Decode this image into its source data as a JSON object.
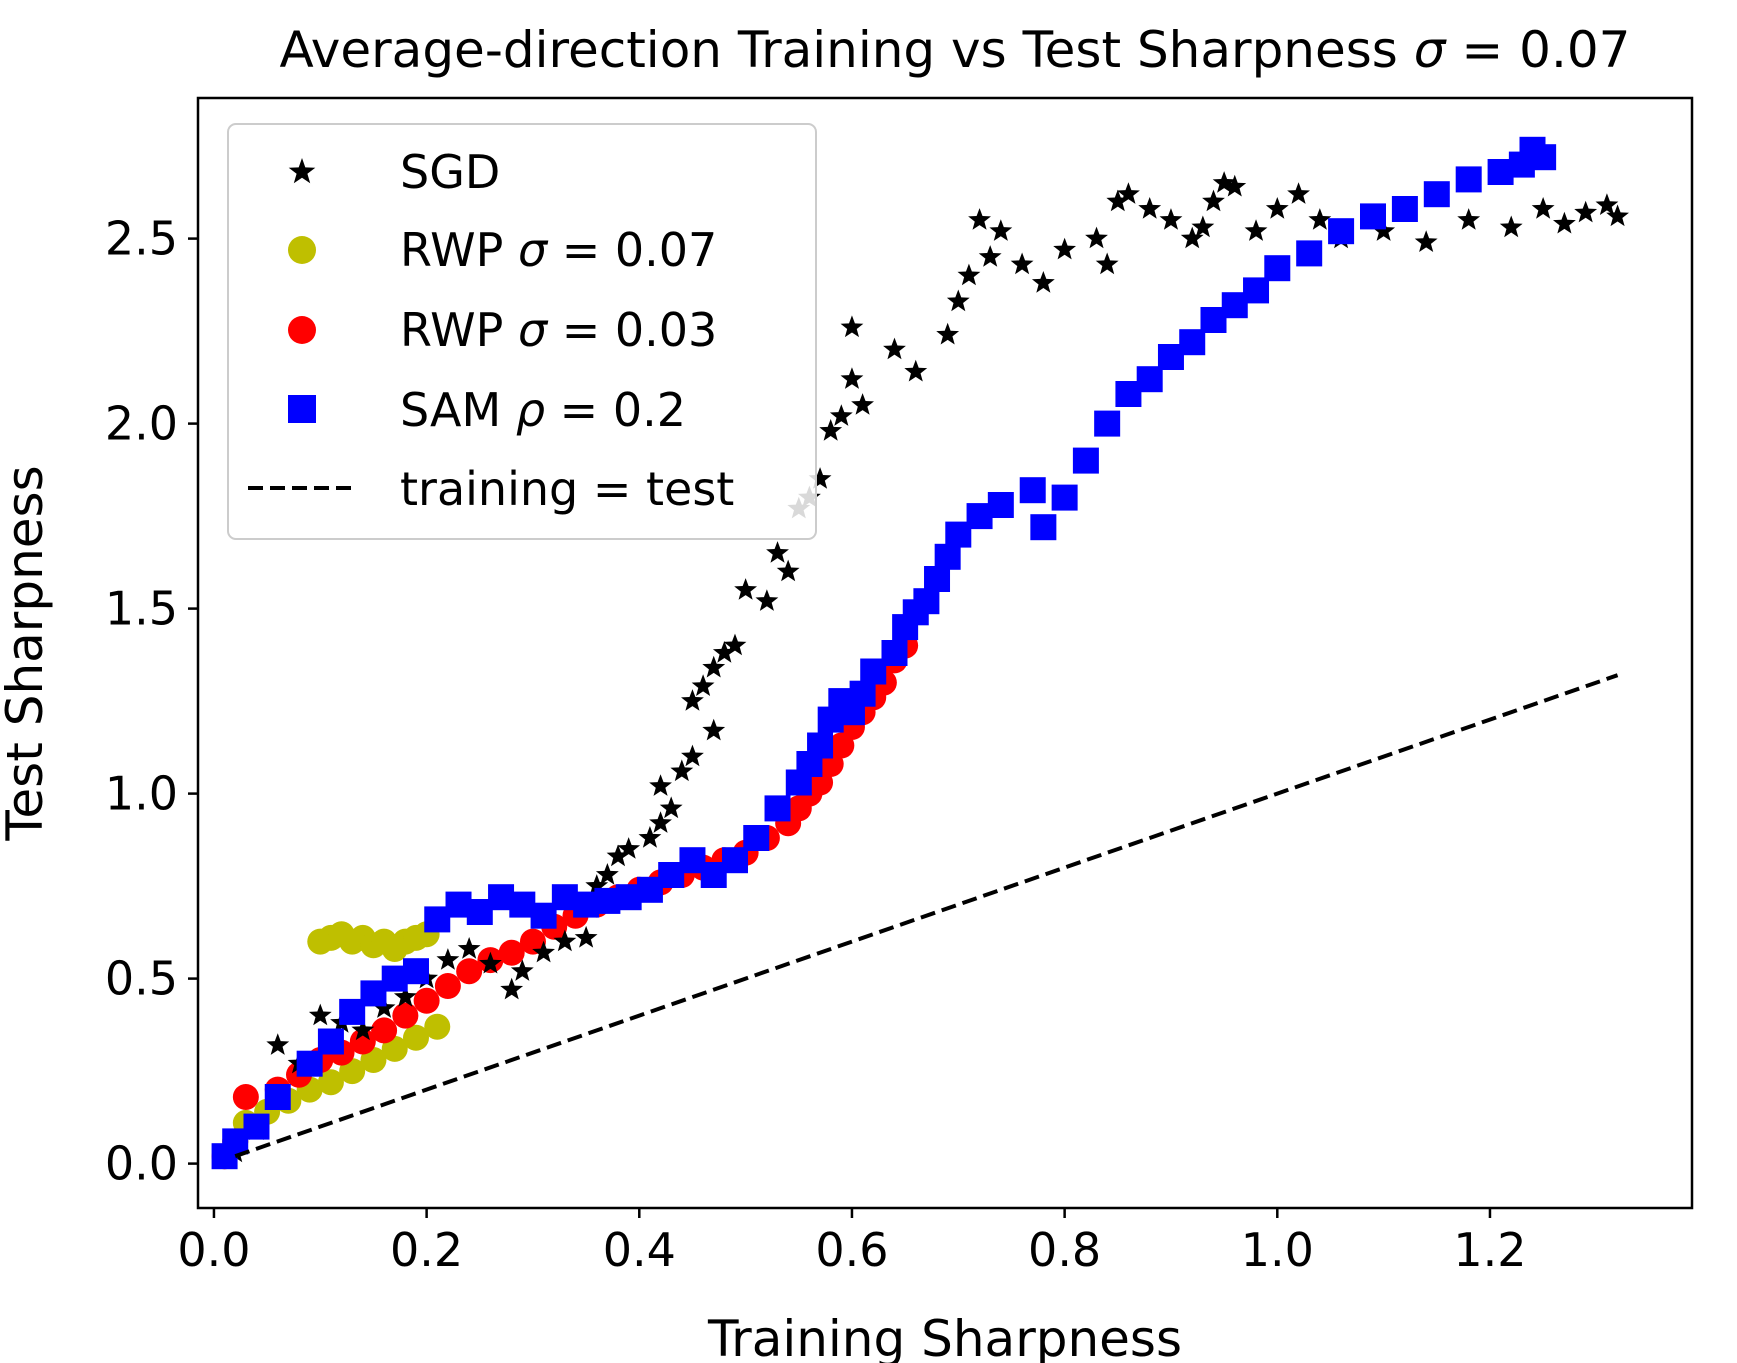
{
  "chart_data": {
    "type": "scatter",
    "title_main": "Average-direction Training vs Test Sharpness ",
    "title_sigma": "σ",
    "title_value": " = 0.07",
    "xlabel": "Training Sharpness",
    "ylabel": "Test Sharpness",
    "xlim": [
      -0.015,
      1.39
    ],
    "ylim": [
      -0.12,
      2.88
    ],
    "xticks": [
      0.0,
      0.2,
      0.4,
      0.6,
      0.8,
      1.0,
      1.2
    ],
    "xtick_labels": [
      "0.0",
      "0.2",
      "0.4",
      "0.6",
      "0.8",
      "1.0",
      "1.2"
    ],
    "yticks": [
      0.0,
      0.5,
      1.0,
      1.5,
      2.0,
      2.5
    ],
    "ytick_labels": [
      "0.0",
      "0.5",
      "1.0",
      "1.5",
      "2.0",
      "2.5"
    ],
    "legend_position": "upper-left",
    "series": [
      {
        "name": "SGD",
        "legend_label": "SGD",
        "marker": "star",
        "color": "#000000",
        "points": [
          [
            0.02,
            0.03
          ],
          [
            0.04,
            0.09
          ],
          [
            0.06,
            0.32
          ],
          [
            0.08,
            0.27
          ],
          [
            0.1,
            0.4
          ],
          [
            0.12,
            0.38
          ],
          [
            0.14,
            0.36
          ],
          [
            0.16,
            0.42
          ],
          [
            0.18,
            0.45
          ],
          [
            0.2,
            0.5
          ],
          [
            0.22,
            0.55
          ],
          [
            0.24,
            0.58
          ],
          [
            0.26,
            0.54
          ],
          [
            0.28,
            0.47
          ],
          [
            0.29,
            0.52
          ],
          [
            0.31,
            0.57
          ],
          [
            0.33,
            0.6
          ],
          [
            0.35,
            0.61
          ],
          [
            0.36,
            0.75
          ],
          [
            0.37,
            0.78
          ],
          [
            0.38,
            0.83
          ],
          [
            0.39,
            0.85
          ],
          [
            0.41,
            0.88
          ],
          [
            0.42,
            0.92
          ],
          [
            0.43,
            0.96
          ],
          [
            0.42,
            1.02
          ],
          [
            0.44,
            1.06
          ],
          [
            0.45,
            1.1
          ],
          [
            0.45,
            1.25
          ],
          [
            0.46,
            1.29
          ],
          [
            0.47,
            1.17
          ],
          [
            0.47,
            1.34
          ],
          [
            0.48,
            1.38
          ],
          [
            0.49,
            1.4
          ],
          [
            0.5,
            1.55
          ],
          [
            0.52,
            1.52
          ],
          [
            0.53,
            1.65
          ],
          [
            0.54,
            1.6
          ],
          [
            0.55,
            1.77
          ],
          [
            0.56,
            1.8
          ],
          [
            0.57,
            1.85
          ],
          [
            0.58,
            1.98
          ],
          [
            0.59,
            2.02
          ],
          [
            0.6,
            2.12
          ],
          [
            0.61,
            2.05
          ],
          [
            0.6,
            2.26
          ],
          [
            0.64,
            2.2
          ],
          [
            0.66,
            2.14
          ],
          [
            0.69,
            2.24
          ],
          [
            0.7,
            2.33
          ],
          [
            0.71,
            2.4
          ],
          [
            0.72,
            2.55
          ],
          [
            0.73,
            2.45
          ],
          [
            0.74,
            2.52
          ],
          [
            0.76,
            2.43
          ],
          [
            0.78,
            2.38
          ],
          [
            0.8,
            2.47
          ],
          [
            0.83,
            2.5
          ],
          [
            0.84,
            2.43
          ],
          [
            0.85,
            2.6
          ],
          [
            0.86,
            2.62
          ],
          [
            0.88,
            2.58
          ],
          [
            0.9,
            2.55
          ],
          [
            0.92,
            2.5
          ],
          [
            0.93,
            2.53
          ],
          [
            0.94,
            2.6
          ],
          [
            0.95,
            2.65
          ],
          [
            0.96,
            2.64
          ],
          [
            0.98,
            2.52
          ],
          [
            1.0,
            2.58
          ],
          [
            1.02,
            2.62
          ],
          [
            1.04,
            2.55
          ],
          [
            1.06,
            2.5
          ],
          [
            1.1,
            2.52
          ],
          [
            1.14,
            2.49
          ],
          [
            1.18,
            2.55
          ],
          [
            1.22,
            2.53
          ],
          [
            1.25,
            2.58
          ],
          [
            1.27,
            2.54
          ],
          [
            1.29,
            2.57
          ],
          [
            1.31,
            2.59
          ],
          [
            1.32,
            2.56
          ]
        ]
      },
      {
        "name": "RWP sigma 0.07",
        "legend_prefix": "RWP ",
        "legend_symbol": "σ",
        "legend_value": " = 0.07",
        "marker": "circle",
        "color": "#bfbf00",
        "points": [
          [
            0.01,
            0.02
          ],
          [
            0.02,
            0.06
          ],
          [
            0.03,
            0.11
          ],
          [
            0.05,
            0.14
          ],
          [
            0.07,
            0.17
          ],
          [
            0.09,
            0.2
          ],
          [
            0.11,
            0.22
          ],
          [
            0.13,
            0.25
          ],
          [
            0.15,
            0.28
          ],
          [
            0.17,
            0.31
          ],
          [
            0.19,
            0.34
          ],
          [
            0.21,
            0.37
          ],
          [
            0.1,
            0.6
          ],
          [
            0.11,
            0.61
          ],
          [
            0.12,
            0.62
          ],
          [
            0.13,
            0.6
          ],
          [
            0.14,
            0.61
          ],
          [
            0.15,
            0.59
          ],
          [
            0.16,
            0.6
          ],
          [
            0.17,
            0.58
          ],
          [
            0.18,
            0.6
          ],
          [
            0.19,
            0.61
          ],
          [
            0.2,
            0.62
          ]
        ]
      },
      {
        "name": "RWP sigma 0.03",
        "legend_prefix": "RWP ",
        "legend_symbol": "σ",
        "legend_value": " = 0.03",
        "marker": "circle",
        "color": "#ff0000",
        "points": [
          [
            0.01,
            0.02
          ],
          [
            0.02,
            0.06
          ],
          [
            0.03,
            0.18
          ],
          [
            0.06,
            0.2
          ],
          [
            0.08,
            0.24
          ],
          [
            0.1,
            0.28
          ],
          [
            0.12,
            0.3
          ],
          [
            0.14,
            0.33
          ],
          [
            0.16,
            0.36
          ],
          [
            0.18,
            0.4
          ],
          [
            0.2,
            0.44
          ],
          [
            0.22,
            0.48
          ],
          [
            0.24,
            0.52
          ],
          [
            0.26,
            0.55
          ],
          [
            0.28,
            0.57
          ],
          [
            0.3,
            0.6
          ],
          [
            0.32,
            0.64
          ],
          [
            0.34,
            0.67
          ],
          [
            0.36,
            0.7
          ],
          [
            0.38,
            0.72
          ],
          [
            0.4,
            0.74
          ],
          [
            0.42,
            0.76
          ],
          [
            0.44,
            0.78
          ],
          [
            0.46,
            0.8
          ],
          [
            0.48,
            0.82
          ],
          [
            0.5,
            0.84
          ],
          [
            0.52,
            0.88
          ],
          [
            0.54,
            0.92
          ],
          [
            0.55,
            0.96
          ],
          [
            0.56,
            1.0
          ],
          [
            0.57,
            1.03
          ],
          [
            0.58,
            1.08
          ],
          [
            0.59,
            1.13
          ],
          [
            0.6,
            1.18
          ],
          [
            0.61,
            1.22
          ],
          [
            0.62,
            1.26
          ],
          [
            0.63,
            1.3
          ],
          [
            0.64,
            1.36
          ],
          [
            0.65,
            1.4
          ]
        ]
      },
      {
        "name": "SAM rho 0.2",
        "legend_prefix": "SAM ",
        "legend_symbol": "ρ",
        "legend_value": " = 0.2",
        "marker": "square",
        "color": "#0000ff",
        "points": [
          [
            0.01,
            0.02
          ],
          [
            0.02,
            0.06
          ],
          [
            0.04,
            0.1
          ],
          [
            0.06,
            0.18
          ],
          [
            0.09,
            0.27
          ],
          [
            0.11,
            0.33
          ],
          [
            0.13,
            0.41
          ],
          [
            0.15,
            0.46
          ],
          [
            0.17,
            0.5
          ],
          [
            0.19,
            0.52
          ],
          [
            0.21,
            0.66
          ],
          [
            0.23,
            0.7
          ],
          [
            0.25,
            0.68
          ],
          [
            0.27,
            0.72
          ],
          [
            0.29,
            0.7
          ],
          [
            0.31,
            0.67
          ],
          [
            0.33,
            0.72
          ],
          [
            0.35,
            0.7
          ],
          [
            0.37,
            0.71
          ],
          [
            0.39,
            0.72
          ],
          [
            0.41,
            0.74
          ],
          [
            0.43,
            0.78
          ],
          [
            0.45,
            0.82
          ],
          [
            0.47,
            0.78
          ],
          [
            0.49,
            0.82
          ],
          [
            0.51,
            0.88
          ],
          [
            0.53,
            0.96
          ],
          [
            0.55,
            1.03
          ],
          [
            0.56,
            1.08
          ],
          [
            0.57,
            1.13
          ],
          [
            0.58,
            1.2
          ],
          [
            0.59,
            1.25
          ],
          [
            0.6,
            1.22
          ],
          [
            0.61,
            1.27
          ],
          [
            0.62,
            1.33
          ],
          [
            0.64,
            1.38
          ],
          [
            0.65,
            1.45
          ],
          [
            0.66,
            1.49
          ],
          [
            0.67,
            1.52
          ],
          [
            0.68,
            1.58
          ],
          [
            0.69,
            1.64
          ],
          [
            0.7,
            1.7
          ],
          [
            0.72,
            1.75
          ],
          [
            0.74,
            1.78
          ],
          [
            0.77,
            1.82
          ],
          [
            0.78,
            1.72
          ],
          [
            0.8,
            1.8
          ],
          [
            0.82,
            1.9
          ],
          [
            0.84,
            2.0
          ],
          [
            0.86,
            2.08
          ],
          [
            0.88,
            2.12
          ],
          [
            0.9,
            2.18
          ],
          [
            0.92,
            2.22
          ],
          [
            0.94,
            2.28
          ],
          [
            0.96,
            2.32
          ],
          [
            0.98,
            2.36
          ],
          [
            1.0,
            2.42
          ],
          [
            1.03,
            2.46
          ],
          [
            1.06,
            2.52
          ],
          [
            1.09,
            2.56
          ],
          [
            1.12,
            2.58
          ],
          [
            1.15,
            2.62
          ],
          [
            1.18,
            2.66
          ],
          [
            1.21,
            2.68
          ],
          [
            1.23,
            2.7
          ],
          [
            1.24,
            2.74
          ],
          [
            1.25,
            2.72
          ]
        ]
      },
      {
        "name": "training = test",
        "legend_label": "training = test",
        "marker": "dashed-line",
        "color": "#000000",
        "points": [
          [
            0.02,
            0.02
          ],
          [
            1.32,
            1.32
          ]
        ]
      }
    ]
  }
}
